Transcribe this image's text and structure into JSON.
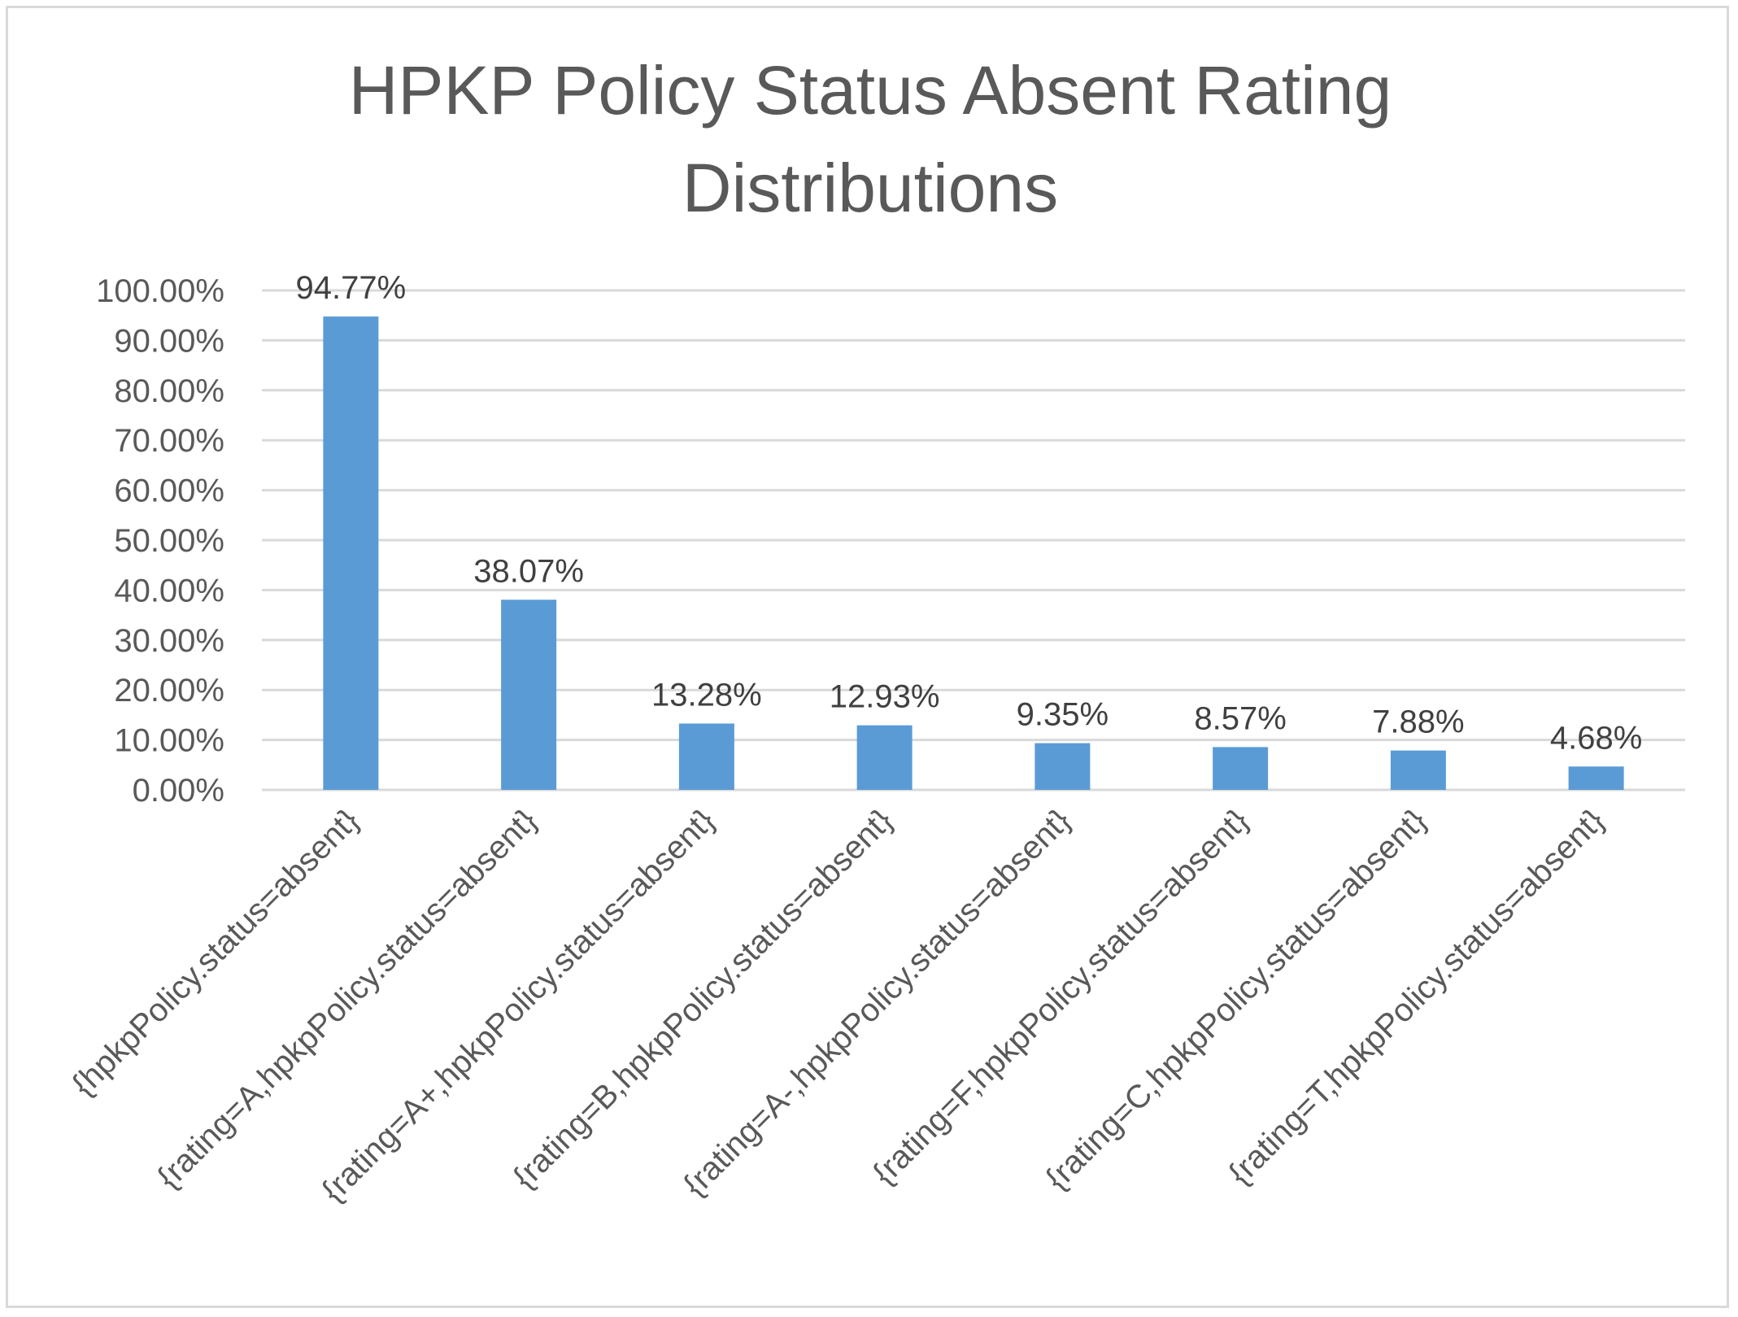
{
  "chart_data": {
    "type": "bar",
    "title_lines": [
      "HPKP Policy Status Absent Rating",
      "Distributions"
    ],
    "categories": [
      "{hpkpPolicy.status=absent}",
      "{rating=A,hpkpPolicy.status=absent}",
      "{rating=A+,hpkpPolicy.status=absent}",
      "{rating=B,hpkpPolicy.status=absent}",
      "{rating=A-,hpkpPolicy.status=absent}",
      "{rating=F,hpkpPolicy.status=absent}",
      "{rating=C,hpkpPolicy.status=absent}",
      "{rating=T,hpkpPolicy.status=absent}"
    ],
    "values": [
      94.77,
      38.07,
      13.28,
      12.93,
      9.35,
      8.57,
      7.88,
      4.68
    ],
    "data_labels": [
      "94.77%",
      "38.07%",
      "13.28%",
      "12.93%",
      "9.35%",
      "8.57%",
      "7.88%",
      "4.68%"
    ],
    "ylim": [
      0,
      100
    ],
    "y_ticks": [
      0,
      10,
      20,
      30,
      40,
      50,
      60,
      70,
      80,
      90,
      100
    ],
    "y_tick_labels": [
      "0.00%",
      "10.00%",
      "20.00%",
      "30.00%",
      "40.00%",
      "50.00%",
      "60.00%",
      "70.00%",
      "80.00%",
      "90.00%",
      "100.00%"
    ],
    "grid": true,
    "legend": "none",
    "colors": {
      "bar": "#5b9bd5",
      "grid": "#d9d9d9",
      "title": "#595959",
      "axis_text": "#595959",
      "data_label": "#404040"
    }
  }
}
